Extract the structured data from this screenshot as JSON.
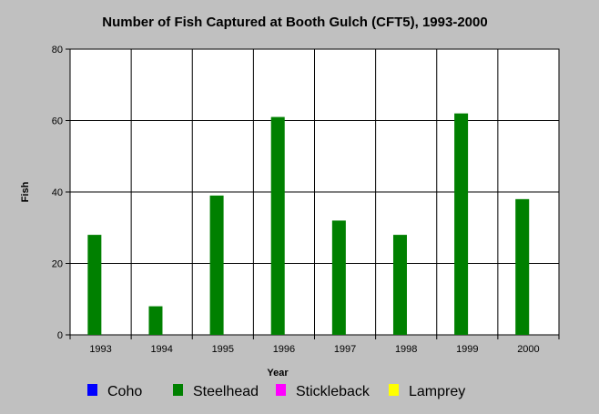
{
  "chart_data": {
    "type": "bar",
    "title": "Number of Fish Captured at Booth Gulch (CFT5), 1993-2000",
    "xlabel": "Year",
    "ylabel": "Fish",
    "categories": [
      "1993",
      "1994",
      "1995",
      "1996",
      "1997",
      "1998",
      "1999",
      "2000"
    ],
    "series": [
      {
        "name": "Coho",
        "color": "#0000ff",
        "values": [
          0,
          0,
          0,
          0,
          0,
          0,
          0,
          0
        ]
      },
      {
        "name": "Steelhead",
        "color": "#008000",
        "values": [
          28,
          8,
          39,
          61,
          32,
          28,
          62,
          38
        ]
      },
      {
        "name": "Stickleback",
        "color": "#ff00ff",
        "values": [
          0,
          0,
          0,
          0,
          0,
          0,
          0,
          0
        ]
      },
      {
        "name": "Lamprey",
        "color": "#ffff00",
        "values": [
          0,
          0,
          0,
          0,
          0,
          0,
          0,
          0
        ]
      }
    ],
    "ylim": [
      0,
      80
    ],
    "yticks": [
      0,
      20,
      40,
      60,
      80
    ],
    "grid": true,
    "legend_position": "bottom"
  }
}
